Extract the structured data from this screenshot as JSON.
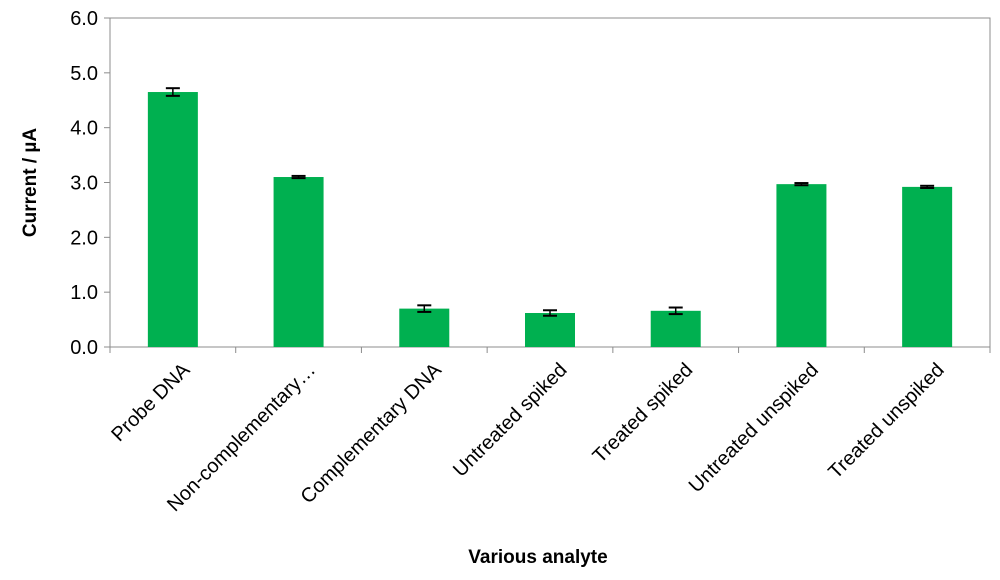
{
  "chart_data": {
    "type": "bar",
    "title": "",
    "xlabel": "Various analyte",
    "ylabel": "Current / µA",
    "categories": [
      "Probe DNA",
      "Non-complementary…",
      "Complementary DNA",
      "Untreated spiked",
      "Treated spiked",
      "Untreated unspiked",
      "Treated unspiked"
    ],
    "series": [
      {
        "values": [
          4.65,
          3.1,
          0.7,
          0.62,
          0.66,
          2.97,
          2.92
        ],
        "errors": [
          0.07,
          0.02,
          0.06,
          0.05,
          0.06,
          0.02,
          0.02
        ],
        "color": "#00b050"
      }
    ],
    "ylim": [
      0,
      6.0
    ],
    "yticks": [
      "0.0",
      "1.0",
      "2.0",
      "3.0",
      "4.0",
      "5.0",
      "6.0"
    ],
    "grid": false,
    "legend": "none"
  }
}
